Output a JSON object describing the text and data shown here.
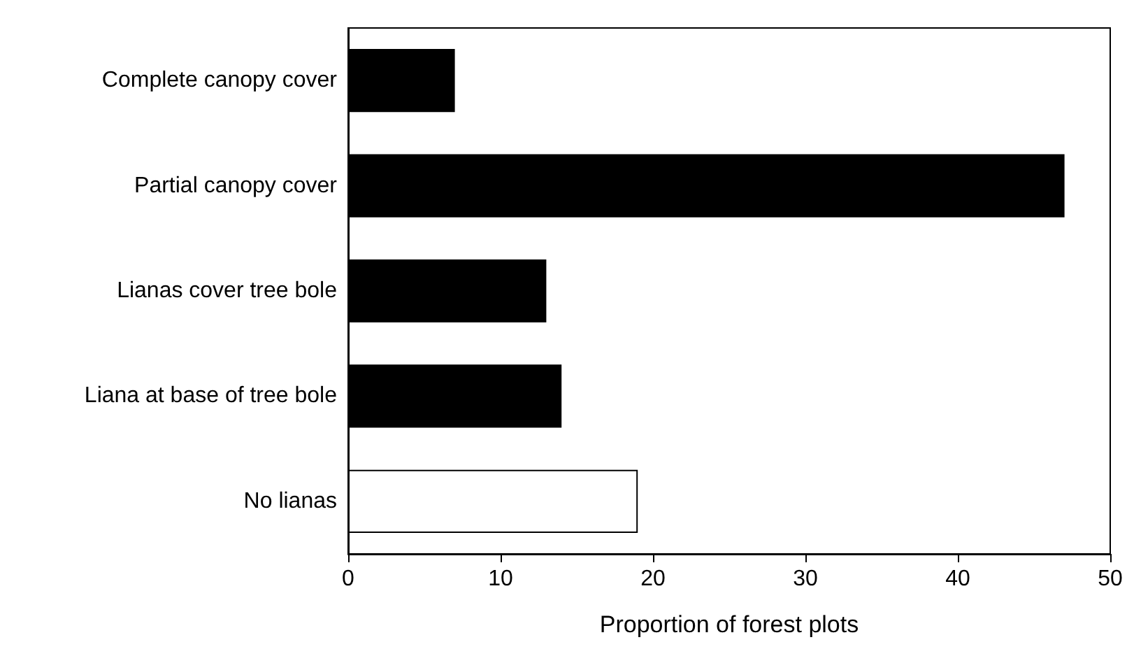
{
  "chart_data": {
    "type": "bar",
    "orientation": "horizontal",
    "xlabel": "Proportion of forest plots",
    "categories": [
      "Complete canopy cover",
      "Partial canopy cover",
      "Lianas cover tree bole",
      "Liana at base of tree bole",
      "No lianas"
    ],
    "values": [
      7,
      47,
      13,
      14,
      19
    ],
    "colors": [
      "#000000",
      "#000000",
      "#000000",
      "#000000",
      "#ffffff"
    ],
    "xlim": [
      0,
      50
    ],
    "xticks": [
      0,
      10,
      20,
      30,
      40,
      50
    ],
    "grid": false
  }
}
